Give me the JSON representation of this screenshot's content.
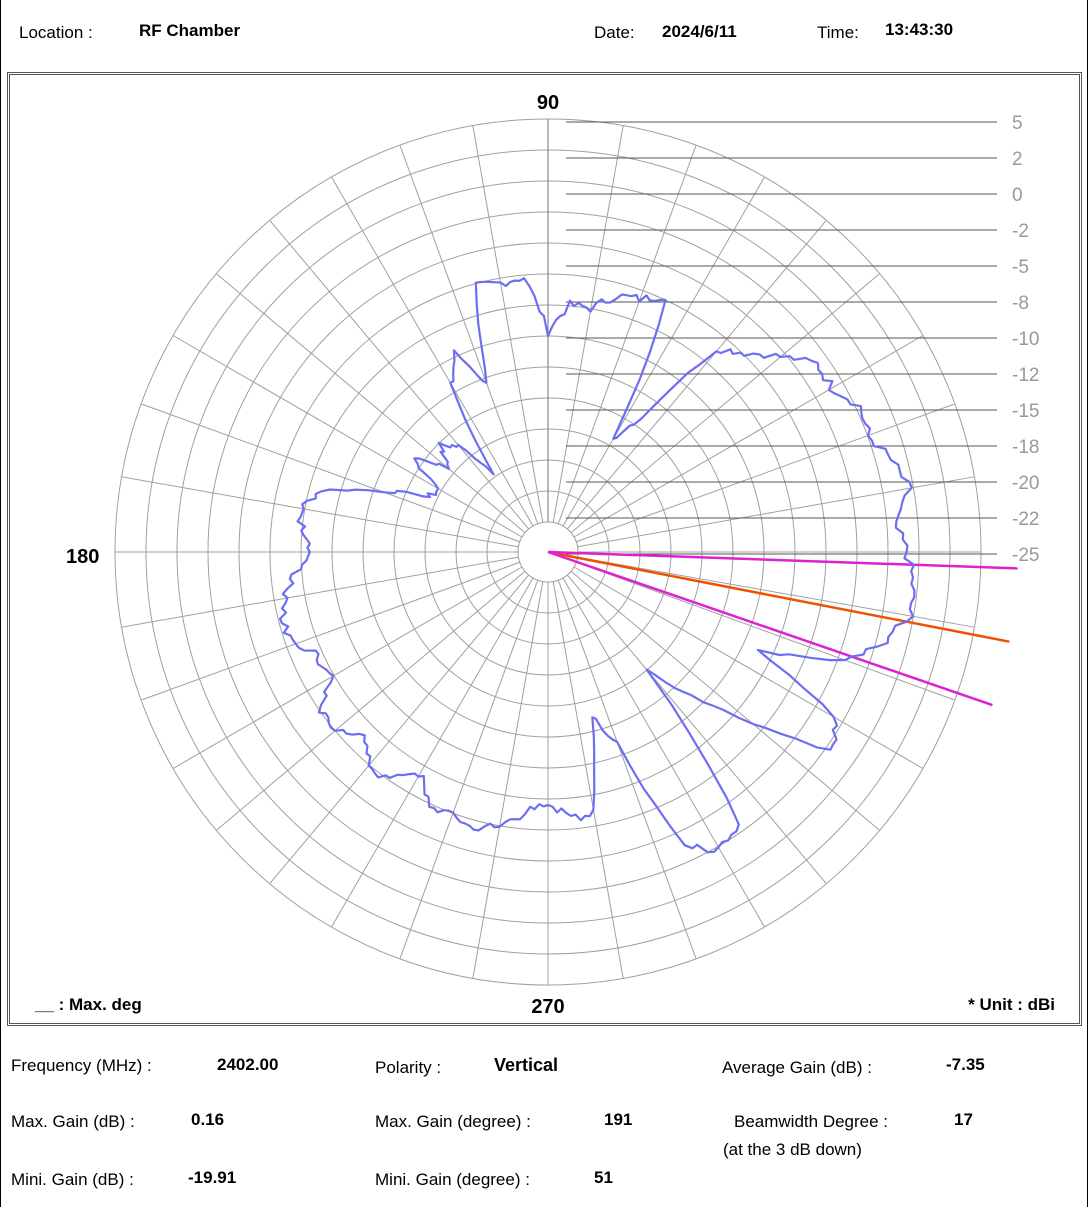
{
  "header": {
    "location_label": "Location :",
    "location_value": "RF Chamber",
    "date_label": "Date:",
    "date_value": "2024/6/11",
    "time_label": "Time:",
    "time_value": "13:43:30"
  },
  "chart_data": {
    "type": "polar",
    "angle_labels": {
      "top": "90",
      "left": "180",
      "bottom": "270"
    },
    "radial_ticks": [
      "5",
      "2",
      "0",
      "-2",
      "-5",
      "-8",
      "-10",
      "-12",
      "-15",
      "-18",
      "-20",
      "-22",
      "-25"
    ],
    "radial_range_dBi": [
      -25,
      5
    ],
    "unit_note": "* Unit : dBi",
    "legend_note": "__ : Max. deg",
    "colors": {
      "trace": "#6e6ef0",
      "max_line": "#f05000",
      "beam_lines": "#e020d0",
      "grid": "#a0a0a0"
    },
    "max_gain_deg": 191,
    "beam_edge_deg": [
      182,
      199
    ],
    "series": [
      {
        "angles": [
          0,
          5,
          10,
          15,
          20,
          25,
          30,
          35,
          40,
          45,
          50,
          55,
          60,
          65,
          70,
          75,
          80,
          85,
          90,
          95,
          100,
          105,
          110,
          115,
          120,
          125,
          130,
          135,
          140,
          145,
          150,
          155,
          160,
          165,
          170,
          175,
          180,
          185,
          190,
          195,
          200,
          205,
          210,
          215,
          220,
          225,
          230,
          235,
          240,
          245,
          250,
          255,
          260,
          265,
          270,
          275,
          280,
          285,
          290,
          295,
          300,
          305,
          310,
          315,
          320,
          325,
          330,
          335,
          340,
          345,
          350,
          355
        ],
        "gain_dBi": [
          -9.5,
          -8.8,
          -8.6,
          -9.6,
          -14.0,
          -17.5,
          -17.9,
          -14.9,
          -17.5,
          -16.0,
          -17.0,
          -19.9,
          -13.0,
          -10.9,
          -14.0,
          -6.8,
          -6.9,
          -6.7,
          -10.8,
          -8.8,
          -8.8,
          -7.5,
          -7.2,
          -6.2,
          -17.5,
          -15.0,
          -7.5,
          -6.3,
          -4.6,
          -2.8,
          -2.8,
          -1.6,
          -1.9,
          -0.8,
          0.0,
          -1.5,
          -0.5,
          0.0,
          0.1,
          -1.4,
          -3.5,
          -10.0,
          -2.5,
          -1.5,
          -7.6,
          -12.0,
          -15.5,
          -2.2,
          -1.6,
          -3.0,
          -12.0,
          -14.8,
          -7.5,
          -7.4,
          -8.6,
          -7.8,
          -6.5,
          -6.0,
          -6.3,
          -6.6,
          -8.2,
          -6.6,
          -6.5,
          -7.8,
          -6.6,
          -6.4,
          -8.5,
          -8.5,
          -7.5,
          -6.6,
          -7.4,
          -8.2
        ]
      }
    ]
  },
  "footer": {
    "freq_label": "Frequency (MHz) :",
    "freq_value": "2402.00",
    "polarity_label": "Polarity :",
    "polarity_value": "Vertical",
    "avg_label": "Average Gain (dB) :",
    "avg_value": "-7.35",
    "maxgain_label": "Max. Gain (dB) :",
    "maxgain_value": "0.16",
    "maxdeg_label": "Max. Gain (degree) :",
    "maxdeg_value": "191",
    "beam_label": "Beamwidth Degree :",
    "beam_value": "17",
    "beam_note": "(at the 3  dB down)",
    "mingain_label": "Mini. Gain (dB) :",
    "mingain_value": "-19.91",
    "mindeg_label": "Mini. Gain (degree) :",
    "mindeg_value": "51"
  }
}
